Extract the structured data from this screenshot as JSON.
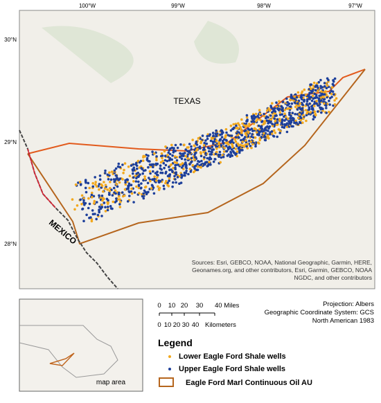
{
  "map": {
    "lon_labels": [
      "100°W",
      "99°W",
      "98°W",
      "97°W"
    ],
    "lat_labels": [
      "30°N",
      "29°N",
      "28°N"
    ],
    "place_labels": {
      "texas": "TEXAS",
      "mexico": "MEXICO"
    },
    "sources": [
      "Sources: Esri, GEBCO, NOAA, National Geographic, Garmin, HERE,",
      "Geonames.org, and other contributors, Esri, Garmin, GEBCO, NOAA",
      "NGDC, and other contributors"
    ]
  },
  "inset": {
    "label": "map area"
  },
  "scale_bar": {
    "miles_ticks": [
      "0",
      "10",
      "20",
      "30",
      "40 Miles"
    ],
    "km_ticks": [
      "0",
      "10",
      "20",
      "30",
      "40",
      "Kilometers"
    ]
  },
  "projection": [
    "Projection: Albers",
    "Geographic Coordinate System: GCS",
    "North American 1983"
  ],
  "legend": {
    "title": "Legend",
    "items": [
      "Lower Eagle Ford Shale wells",
      "Upper Eagle Ford Shale wells",
      "Eagle Ford Marl Continuous Oil AU"
    ]
  }
}
